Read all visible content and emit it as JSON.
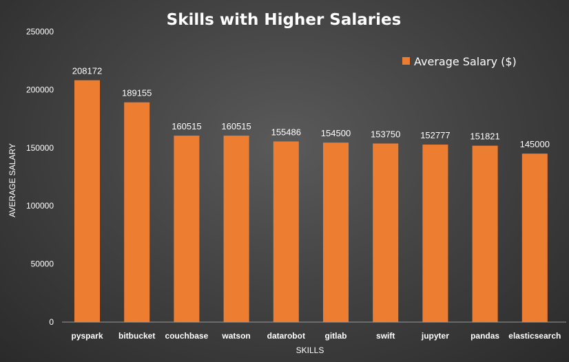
{
  "chart_data": {
    "type": "bar",
    "title": "Skills with Higher Salaries",
    "xlabel": "SKILLS",
    "ylabel": "AVERAGE SALARY",
    "categories": [
      "pyspark",
      "bitbucket",
      "couchbase",
      "watson",
      "datarobot",
      "gitlab",
      "swift",
      "jupyter",
      "pandas",
      "elasticsearch"
    ],
    "series": [
      {
        "name": "Average Salary ($)",
        "values": [
          208172,
          189155,
          160515,
          160515,
          155486,
          154500,
          153750,
          152777,
          151821,
          145000
        ],
        "color": "#ed7d31"
      }
    ],
    "ylim": [
      0,
      250000
    ],
    "yticks": [
      0,
      50000,
      100000,
      150000,
      200000,
      250000
    ],
    "grid": false,
    "legend_position": "top-right",
    "data_labels": true
  }
}
